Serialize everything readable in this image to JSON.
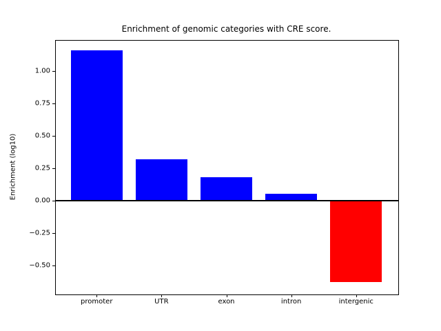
{
  "figure": {
    "background": "#ffffff",
    "title": "Enrichment of genomic categories with CRE score.",
    "ylabel": "Enrichment (log10)"
  },
  "chart_data": {
    "type": "bar",
    "title": "Enrichment of genomic categories with CRE score.",
    "xlabel": "",
    "ylabel": "Enrichment (log10)",
    "categories": [
      "promoter",
      "UTR",
      "exon",
      "intron",
      "intergenic"
    ],
    "values": [
      1.16,
      0.32,
      0.18,
      0.05,
      -0.63
    ],
    "positive_color": "#0000ff",
    "negative_color": "#ff0000",
    "zero_line_color": "#000000",
    "yticks": [
      1.0,
      0.75,
      0.5,
      0.25,
      0.0,
      -0.25,
      -0.5
    ],
    "ytick_labels": [
      "1.00",
      "0.75",
      "0.50",
      "0.25",
      "0.00",
      "−0.25",
      "−0.50"
    ],
    "ylim": [
      -0.72,
      1.24
    ],
    "xlim": [
      -0.64,
      4.64
    ],
    "bar_width": 0.8,
    "grid": false,
    "legend": null,
    "zero_line": true
  }
}
